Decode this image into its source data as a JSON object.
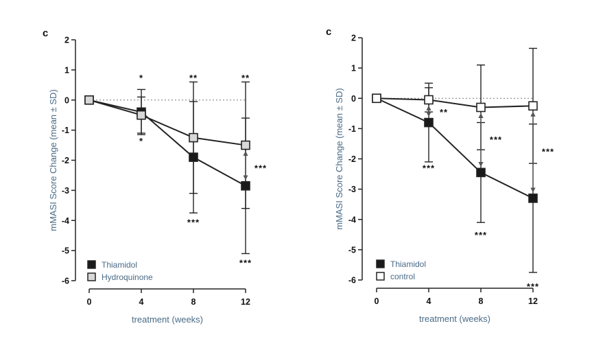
{
  "chart_data": [
    {
      "type": "line",
      "panel_label": "c",
      "xlabel": "treatment (weeks)",
      "ylabel": "mMASI Score Change (mean ± SD)",
      "x": [
        0,
        4,
        8,
        12
      ],
      "xlim": [
        0,
        12
      ],
      "ylim": [
        -6,
        2
      ],
      "x_ticks": [
        "0",
        "4",
        "8",
        "12"
      ],
      "y_ticks": [
        "2",
        "1",
        "0",
        "-1",
        "-2",
        "-3",
        "-4",
        "-5",
        "-6"
      ],
      "reference_line": 0,
      "legend_position": "bottom-left",
      "series": [
        {
          "name": "Thiamidol",
          "marker": "filled-square",
          "values": [
            0,
            -0.4,
            -1.9,
            -2.85
          ],
          "sd": [
            0,
            0.75,
            1.85,
            2.25
          ]
        },
        {
          "name": "Hydroquinone",
          "marker": "light-square",
          "values": [
            0,
            -0.5,
            -1.25,
            -1.5
          ],
          "sd": [
            0,
            0.6,
            1.85,
            2.1
          ]
        }
      ],
      "annotations": [
        {
          "text": "*",
          "x": 4,
          "y": 0.75
        },
        {
          "text": "*",
          "x": 4,
          "y": -1.35
        },
        {
          "text": "**",
          "x": 8,
          "y": 0.75
        },
        {
          "text": "***",
          "x": 8,
          "y": -4.05
        },
        {
          "text": "**",
          "x": 12,
          "y": 0.75
        },
        {
          "text": "***",
          "x": 12,
          "y": -2.25
        },
        {
          "text": "***",
          "x": 12,
          "y": -5.4
        }
      ]
    },
    {
      "type": "line",
      "panel_label": "c",
      "xlabel": "treatment (weeks)",
      "ylabel": "mMASI Score Change (mean ± SD)",
      "x": [
        0,
        4,
        8,
        12
      ],
      "xlim": [
        0,
        12
      ],
      "ylim": [
        -6,
        2
      ],
      "x_ticks": [
        "0",
        "4",
        "8",
        "12"
      ],
      "y_ticks": [
        "2",
        "1",
        "0",
        "-1",
        "-2",
        "-3",
        "-4",
        "-5",
        "-6"
      ],
      "reference_line": 0,
      "legend_position": "bottom-left",
      "series": [
        {
          "name": "Thiamidol",
          "marker": "filled-square",
          "values": [
            0,
            -0.8,
            -2.45,
            -3.3
          ],
          "sd": [
            0,
            1.3,
            1.65,
            2.45
          ]
        },
        {
          "name": "control",
          "marker": "open-square",
          "values": [
            0,
            -0.05,
            -0.3,
            -0.25
          ],
          "sd": [
            0,
            0.4,
            1.4,
            1.9
          ]
        }
      ],
      "annotations": [
        {
          "text": "**",
          "x": 4,
          "y": -0.45
        },
        {
          "text": "***",
          "x": 4,
          "y": -2.3
        },
        {
          "text": "***",
          "x": 8,
          "y": -1.35
        },
        {
          "text": "***",
          "x": 8,
          "y": -4.5
        },
        {
          "text": "***",
          "x": 12,
          "y": -1.75
        },
        {
          "text": "***",
          "x": 12,
          "y": -6.2
        }
      ]
    }
  ]
}
